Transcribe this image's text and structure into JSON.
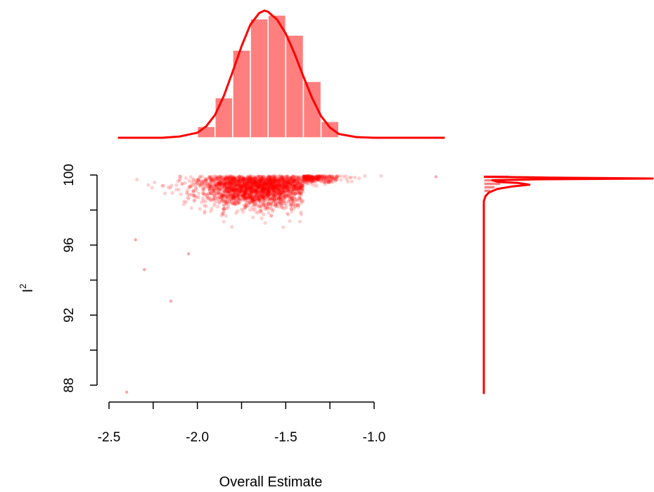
{
  "chart_data": {
    "type": "scatter",
    "title": "",
    "xlabel": "Overall Estimate",
    "ylabel": "I",
    "ylabel_superscript": "2",
    "xlim": [
      -2.55,
      -0.5
    ],
    "ylim": [
      87.0,
      100.6
    ],
    "xticks": [
      -2.5,
      -2.0,
      -1.5,
      -1.0
    ],
    "xtick_labels": [
      "-2.5",
      "-2.0",
      "-1.5",
      "-1.0"
    ],
    "yticks": [
      88,
      92,
      96,
      100
    ],
    "ytick_labels": [
      "88",
      "92",
      "96",
      "100"
    ],
    "point_color": "#ff0000",
    "series_color": "#ff0000",
    "hist_fill": "#ff7f7f",
    "scatter_summary": {
      "x_center": -1.65,
      "x_spread": 0.17,
      "y_range_dense": [
        97.8,
        99.9
      ],
      "outliers": [
        [
          -2.4,
          87.6
        ],
        [
          -2.3,
          94.6
        ],
        [
          -2.15,
          92.8
        ],
        [
          -2.35,
          96.3
        ],
        [
          -2.05,
          95.5
        ],
        [
          -0.65,
          99.9
        ]
      ]
    },
    "top_histogram": {
      "bin_edges": [
        -2.0,
        -1.9,
        -1.8,
        -1.7,
        -1.6,
        -1.5,
        -1.4,
        -1.3,
        -1.2
      ],
      "relative_heights": [
        0.09,
        0.32,
        0.7,
        0.95,
        0.98,
        0.82,
        0.45,
        0.13
      ]
    },
    "top_density": {
      "x": [
        -2.45,
        -2.2,
        -2.1,
        -2.0,
        -1.95,
        -1.9,
        -1.85,
        -1.8,
        -1.75,
        -1.7,
        -1.65,
        -1.62,
        -1.6,
        -1.55,
        -1.5,
        -1.45,
        -1.4,
        -1.35,
        -1.3,
        -1.25,
        -1.2,
        -1.1,
        -1.0,
        -0.9,
        -0.6
      ],
      "relative_density": [
        0.0,
        0.0,
        0.01,
        0.04,
        0.09,
        0.18,
        0.33,
        0.52,
        0.72,
        0.89,
        0.98,
        1.0,
        0.99,
        0.93,
        0.82,
        0.66,
        0.48,
        0.31,
        0.17,
        0.08,
        0.03,
        0.005,
        0.0,
        0.0,
        0.0
      ]
    },
    "right_histogram": {
      "bin_edges": [
        99.0,
        99.2,
        99.4,
        99.6,
        99.8,
        100.0
      ],
      "relative_widths": [
        0.12,
        0.2,
        0.3,
        0.35,
        0.45
      ]
    },
    "right_density": {
      "y": [
        87.5,
        98.5,
        98.8,
        99.0,
        99.2,
        99.35,
        99.45,
        99.55,
        99.6,
        99.7,
        99.75,
        99.8,
        99.85,
        99.9
      ],
      "relative_density": [
        0.0,
        0.0,
        0.01,
        0.03,
        0.08,
        0.17,
        0.27,
        0.2,
        0.09,
        0.05,
        0.3,
        1.0,
        0.4,
        0.0
      ]
    }
  }
}
